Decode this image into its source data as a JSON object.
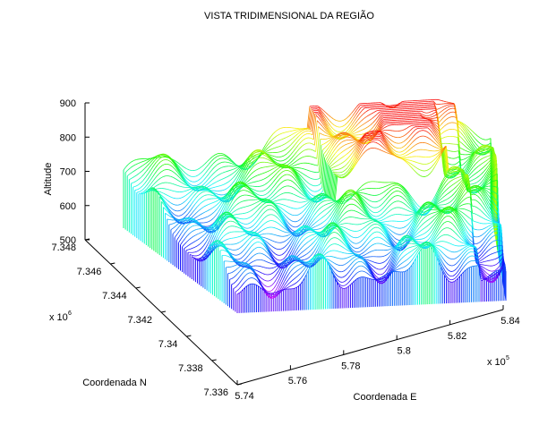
{
  "chart_data": {
    "type": "surface",
    "title": "VISTA TRIDIMENSIONAL DA REGIÃO",
    "xlabel": "Coordenada E",
    "ylabel": "Coordenada N",
    "zlabel": "Altitude",
    "x_multiplier": "x 10",
    "x_multiplier_exp": "5",
    "y_multiplier": "x 10",
    "y_multiplier_exp": "6",
    "x_ticks": [
      "5.74",
      "5.76",
      "5.78",
      "5.8",
      "5.82",
      "5.84"
    ],
    "y_ticks": [
      "7.336",
      "7.338",
      "7.34",
      "7.342",
      "7.344",
      "7.346",
      "7.348"
    ],
    "z_ticks": [
      "500",
      "600",
      "700",
      "800",
      "900"
    ],
    "xlim": [
      5.74,
      5.84
    ],
    "ylim": [
      7.336,
      7.348
    ],
    "zlim": [
      500,
      900
    ],
    "colormap": "hsv"
  }
}
